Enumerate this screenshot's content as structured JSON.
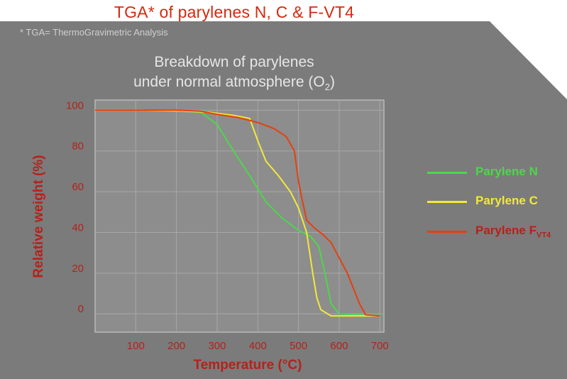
{
  "page": {
    "title": "TGA* of parylenes N, C & F-VT4",
    "footnote": "* TGA=  ThermoGravimetric Analysis"
  },
  "colors": {
    "title": "#d42a10",
    "panel": "#7b7b7b",
    "plot": "#8d8d8d",
    "grid": "#a8a8a8",
    "axis_label": "#b4221a",
    "parylene_n": "#4cd84a",
    "parylene_c": "#f2e83a",
    "parylene_f": "#e6400e"
  },
  "chart_data": {
    "type": "line",
    "title_line1": "Breakdown of parylenes",
    "title_line2": "under normal atmosphere (O",
    "title_sub": "2",
    "title_end": ")",
    "xlabel": "Temperature  (°C)",
    "ylabel": "Relative weight  (%)",
    "xlim": [
      0,
      710
    ],
    "ylim": [
      -9,
      105
    ],
    "x_ticks": [
      100,
      200,
      300,
      400,
      500,
      600,
      700
    ],
    "y_ticks": [
      0,
      20,
      40,
      60,
      80,
      100
    ],
    "grid": true,
    "legend_position": "right",
    "series": [
      {
        "name": "Parylene N",
        "color": "#4cd84a",
        "x": [
          0,
          100,
          200,
          260,
          300,
          340,
          380,
          420,
          460,
          500,
          530,
          550,
          565,
          580,
          600,
          650,
          700
        ],
        "y": [
          100,
          100,
          99.8,
          99,
          93,
          80,
          68,
          55,
          47,
          41,
          38,
          33,
          20,
          5,
          0,
          -0.5,
          -0.7
        ]
      },
      {
        "name": "Parylene C",
        "color": "#f2e83a",
        "x": [
          0,
          100,
          200,
          280,
          340,
          380,
          400,
          420,
          450,
          480,
          500,
          520,
          535,
          545,
          555,
          580,
          620,
          700
        ],
        "y": [
          100,
          100,
          99.7,
          99,
          97.5,
          96,
          85,
          75,
          68,
          60,
          52,
          40,
          20,
          8,
          2,
          -1,
          -1,
          -1
        ]
      },
      {
        "name": "Parylene F",
        "name_sub": "VT4",
        "color": "#e6400e",
        "x": [
          0,
          100,
          200,
          260,
          300,
          350,
          400,
          440,
          470,
          490,
          500,
          510,
          520,
          540,
          560,
          580,
          620,
          650,
          665,
          700
        ],
        "y": [
          100,
          100,
          100,
          99.5,
          98,
          96.5,
          94,
          91,
          87,
          80,
          65,
          55,
          46,
          42,
          39,
          35,
          20,
          5,
          -0.5,
          -1
        ]
      }
    ]
  }
}
